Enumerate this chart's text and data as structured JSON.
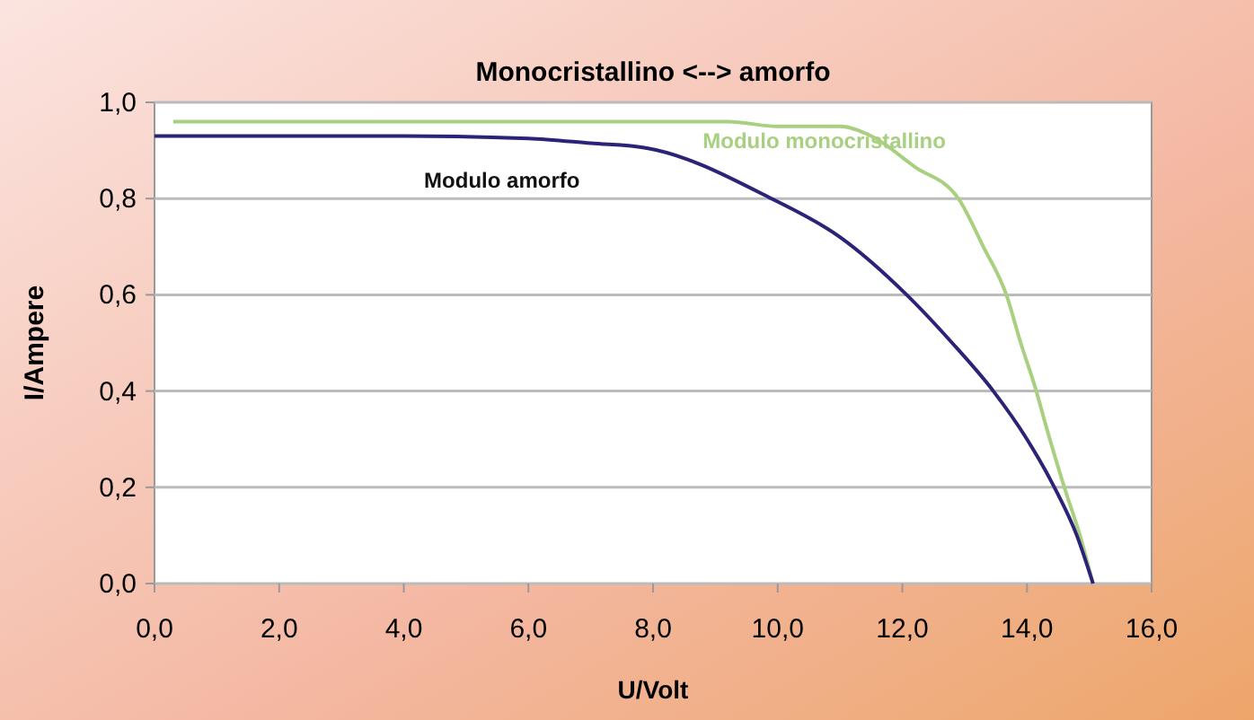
{
  "chart_data": {
    "type": "line",
    "title": "Monocristallino <--> amorfo",
    "xlabel": "U/Volt",
    "ylabel": "I/Ampere",
    "xlim": [
      0,
      16
    ],
    "xticks": [
      {
        "value": 0,
        "label": "0,0"
      },
      {
        "value": 2,
        "label": "2,0"
      },
      {
        "value": 4,
        "label": "4,0"
      },
      {
        "value": 6,
        "label": "6,0"
      },
      {
        "value": 8,
        "label": "8,0"
      },
      {
        "value": 10,
        "label": "10,0"
      },
      {
        "value": 12,
        "label": "12,0"
      },
      {
        "value": 14,
        "label": "14,0"
      },
      {
        "value": 16,
        "label": "16,0"
      }
    ],
    "ylim": [
      0,
      1
    ],
    "yticks": [
      {
        "value": 0,
        "label": "0,0"
      },
      {
        "value": 0.2,
        "label": "0,2"
      },
      {
        "value": 0.4,
        "label": "0,4"
      },
      {
        "value": 0.6,
        "label": "0,6"
      },
      {
        "value": 0.8,
        "label": "0,8"
      },
      {
        "value": 1,
        "label": "1,0"
      }
    ],
    "grid": "y",
    "marker": "none",
    "line_style": "solid",
    "series": [
      {
        "name": "Modulo monocristallino",
        "color": "#a8d080",
        "x": [
          0.3,
          2,
          4,
          6,
          8,
          9.2,
          10,
          11,
          11.5,
          12.2,
          12.9,
          13.3,
          13.67,
          13.9,
          14.15,
          14.3,
          14.6,
          14.85,
          15.06
        ],
        "values": [
          0.96,
          0.96,
          0.96,
          0.96,
          0.96,
          0.96,
          0.95,
          0.95,
          0.93,
          0.866,
          0.8,
          0.7,
          0.6,
          0.5,
          0.4,
          0.33,
          0.2,
          0.1,
          0
        ]
      },
      {
        "name": "Modulo amorfo",
        "color": "#2a2378",
        "x": [
          0,
          2,
          4,
          6,
          7,
          7.9,
          9.9,
          11,
          12.07,
          12.8,
          13.46,
          14,
          14.44,
          14.8,
          15.06
        ],
        "values": [
          0.93,
          0.93,
          0.93,
          0.925,
          0.915,
          0.905,
          0.8,
          0.72,
          0.6,
          0.5,
          0.4,
          0.3,
          0.2,
          0.1,
          0
        ]
      }
    ]
  }
}
